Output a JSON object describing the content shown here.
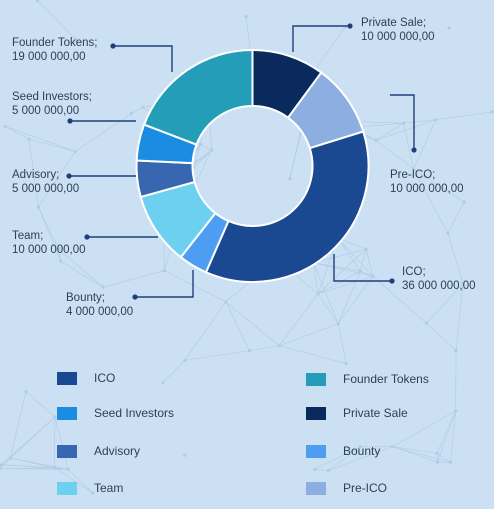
{
  "chart_data": {
    "type": "donut",
    "slices": [
      {
        "name": "Private Sale",
        "label": "Private Sale;",
        "value_text": "10 000 000,00",
        "value": 10000000,
        "color": "#0a2a5e"
      },
      {
        "name": "Pre-ICO",
        "label": "Pre-ICO;",
        "value_text": "10 000 000,00",
        "value": 10000000,
        "color": "#8daee0"
      },
      {
        "name": "ICO",
        "label": "ICO;",
        "value_text": "36 000 000,00",
        "value": 36000000,
        "color": "#1a4891"
      },
      {
        "name": "Bounty",
        "label": "Bounty;",
        "value_text": "4 000 000,00",
        "value": 4000000,
        "color": "#4d9df2"
      },
      {
        "name": "Team",
        "label": "Team;",
        "value_text": "10 000 000,00",
        "value": 10000000,
        "color": "#6dd0f0"
      },
      {
        "name": "Advisory",
        "label": "Advisory;",
        "value_text": "5 000 000,00",
        "value": 5000000,
        "color": "#3866b0"
      },
      {
        "name": "Seed Investors",
        "label": "Seed Investors;",
        "value_text": "5 000 000,00",
        "value": 5000000,
        "color": "#1a8ce2"
      },
      {
        "name": "Founder Tokens",
        "label": "Founder Tokens;",
        "value_text": "19 000 000,00",
        "value": 19000000,
        "color": "#239db8"
      }
    ]
  },
  "legend": [
    {
      "label": "ICO",
      "color": "#1a4891"
    },
    {
      "label": "Founder Tokens",
      "color": "#239db8"
    },
    {
      "label": "Seed Investors",
      "color": "#1a8ce2"
    },
    {
      "label": "Private Sale",
      "color": "#0a2a5e"
    },
    {
      "label": "Advisory",
      "color": "#3866b0"
    },
    {
      "label": "Bounty",
      "color": "#4d9df2"
    },
    {
      "label": "Team",
      "color": "#6dd0f0"
    },
    {
      "label": "Pre-ICO",
      "color": "#8daee0"
    }
  ],
  "colors": {
    "background": "#cbe1f3",
    "leader_line": "#1e3f7a",
    "text": "#2c3f56"
  }
}
